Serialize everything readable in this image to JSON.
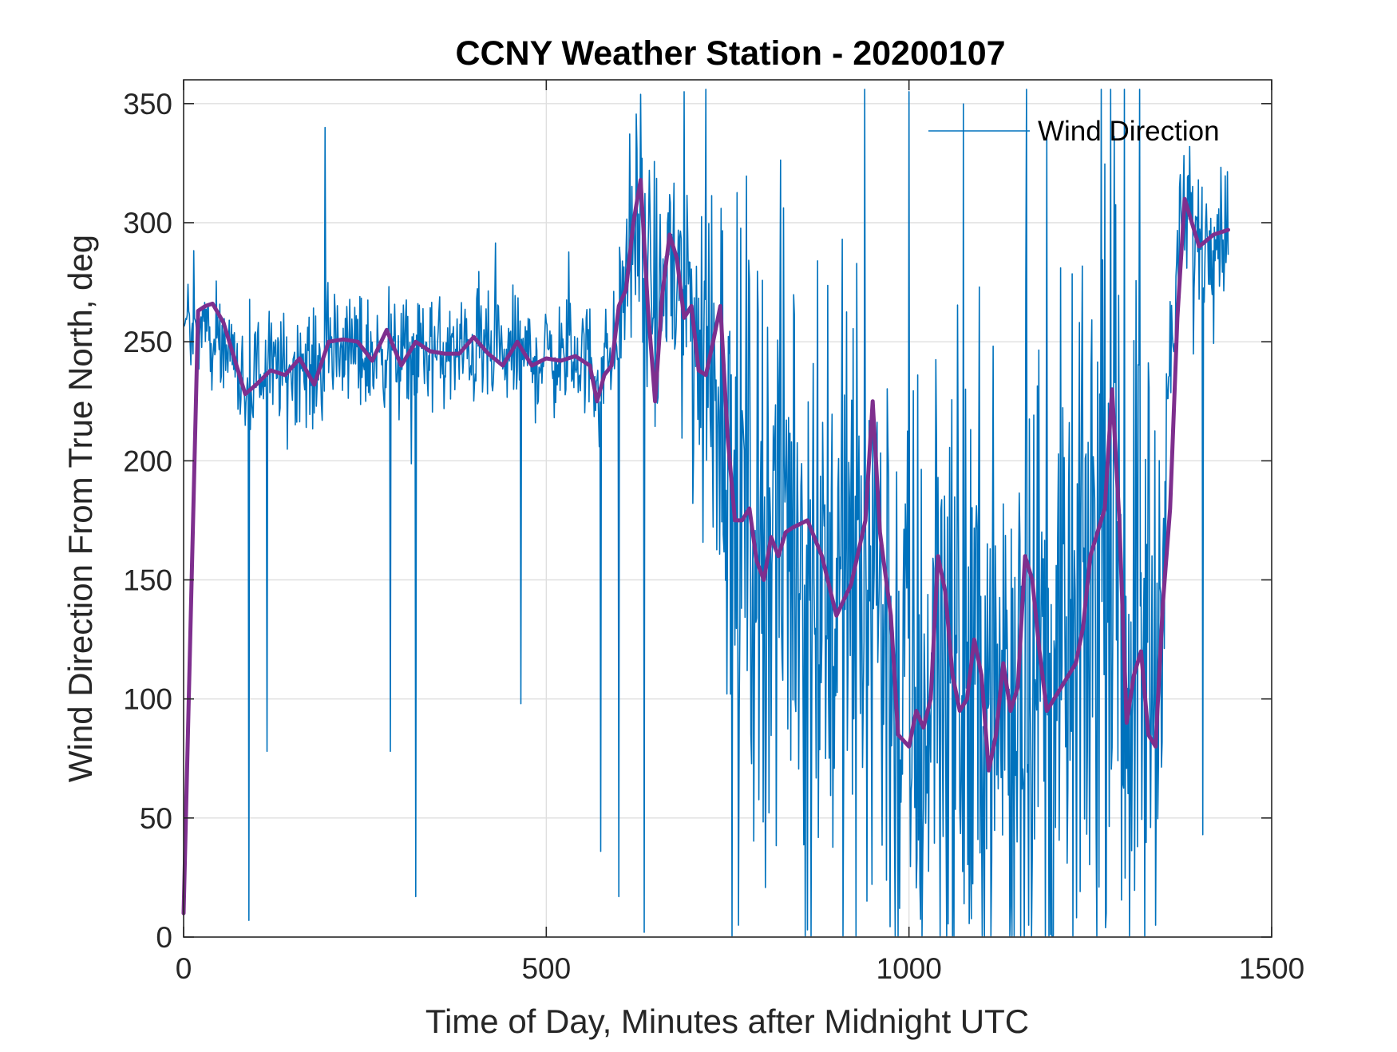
{
  "chart_data": {
    "type": "line",
    "title": "CCNY Weather Station - 20200107",
    "xlabel": "Time of Day, Minutes after Midnight UTC",
    "ylabel": "Wind Direction From True North, deg",
    "xlim": [
      0,
      1500
    ],
    "ylim": [
      0,
      360
    ],
    "xticks": [
      0,
      500,
      1000,
      1500
    ],
    "yticks": [
      0,
      50,
      100,
      150,
      200,
      250,
      300,
      350
    ],
    "grid": true,
    "legend": {
      "entries": [
        "Wind Direction"
      ],
      "placement": "top-right"
    },
    "series": [
      {
        "name": "Wind Direction",
        "color": "#0072BD",
        "style": "raw-noisy",
        "x_range": [
          0,
          1440
        ],
        "sample_interval_min": 1,
        "envelope": [
          {
            "x": 0,
            "center": 255,
            "spread": 18
          },
          {
            "x": 100,
            "center": 240,
            "spread": 22
          },
          {
            "x": 300,
            "center": 243,
            "spread": 22
          },
          {
            "x": 590,
            "center": 245,
            "spread": 22
          },
          {
            "x": 620,
            "center": 290,
            "spread": 40
          },
          {
            "x": 700,
            "center": 265,
            "spread": 70
          },
          {
            "x": 760,
            "center": 190,
            "spread": 110
          },
          {
            "x": 900,
            "center": 155,
            "spread": 130
          },
          {
            "x": 960,
            "center": 110,
            "spread": 130
          },
          {
            "x": 1100,
            "center": 100,
            "spread": 130
          },
          {
            "x": 1250,
            "center": 130,
            "spread": 130
          },
          {
            "x": 1340,
            "center": 150,
            "spread": 140
          },
          {
            "x": 1360,
            "center": 295,
            "spread": 30
          },
          {
            "x": 1440,
            "center": 300,
            "spread": 25
          }
        ],
        "extremes": [
          {
            "x": 90,
            "y": 7
          },
          {
            "x": 115,
            "y": 78
          },
          {
            "x": 195,
            "y": 340
          },
          {
            "x": 285,
            "y": 78
          },
          {
            "x": 320,
            "y": 17
          },
          {
            "x": 465,
            "y": 98
          },
          {
            "x": 575,
            "y": 36
          },
          {
            "x": 600,
            "y": 17
          },
          {
            "x": 635,
            "y": 2
          },
          {
            "x": 690,
            "y": 355
          },
          {
            "x": 765,
            "y": 5
          },
          {
            "x": 860,
            "y": 3
          },
          {
            "x": 1000,
            "y": 355
          },
          {
            "x": 1165,
            "y": 5
          },
          {
            "x": 1195,
            "y": 1
          },
          {
            "x": 1340,
            "y": 5
          },
          {
            "x": 1405,
            "y": 43
          }
        ]
      },
      {
        "name": "",
        "color": "#7E2F8E",
        "style": "smoothed",
        "x": [
          0,
          20,
          30,
          40,
          55,
          70,
          85,
          100,
          120,
          140,
          160,
          180,
          200,
          220,
          240,
          260,
          280,
          300,
          320,
          340,
          360,
          380,
          400,
          420,
          440,
          460,
          480,
          500,
          520,
          540,
          560,
          570,
          580,
          590,
          600,
          610,
          620,
          630,
          640,
          650,
          660,
          670,
          680,
          690,
          700,
          710,
          720,
          730,
          740,
          750,
          760,
          770,
          780,
          790,
          800,
          810,
          820,
          830,
          840,
          860,
          880,
          900,
          920,
          940,
          950,
          960,
          965,
          975,
          985,
          1000,
          1010,
          1020,
          1030,
          1040,
          1050,
          1060,
          1070,
          1080,
          1090,
          1100,
          1110,
          1120,
          1130,
          1140,
          1150,
          1160,
          1170,
          1180,
          1190,
          1200,
          1210,
          1220,
          1230,
          1240,
          1250,
          1260,
          1270,
          1280,
          1290,
          1300,
          1310,
          1320,
          1330,
          1340,
          1350,
          1360,
          1370,
          1380,
          1400,
          1420,
          1440
        ],
        "y": [
          10,
          263,
          265,
          266,
          258,
          243,
          228,
          232,
          238,
          236,
          243,
          232,
          250,
          251,
          250,
          242,
          255,
          240,
          250,
          246,
          245,
          245,
          252,
          245,
          240,
          250,
          240,
          243,
          242,
          244,
          240,
          225,
          236,
          240,
          265,
          272,
          300,
          318,
          265,
          225,
          270,
          295,
          285,
          260,
          265,
          238,
          236,
          250,
          265,
          210,
          175,
          175,
          180,
          158,
          150,
          168,
          160,
          170,
          172,
          175,
          160,
          135,
          148,
          175,
          225,
          170,
          158,
          135,
          85,
          80,
          95,
          88,
          100,
          160,
          145,
          110,
          95,
          100,
          125,
          110,
          70,
          85,
          115,
          95,
          105,
          160,
          150,
          120,
          95,
          100,
          105,
          110,
          115,
          130,
          160,
          170,
          180,
          230,
          175,
          90,
          110,
          120,
          85,
          80,
          140,
          180,
          260,
          310,
          290,
          295,
          297
        ]
      }
    ]
  }
}
